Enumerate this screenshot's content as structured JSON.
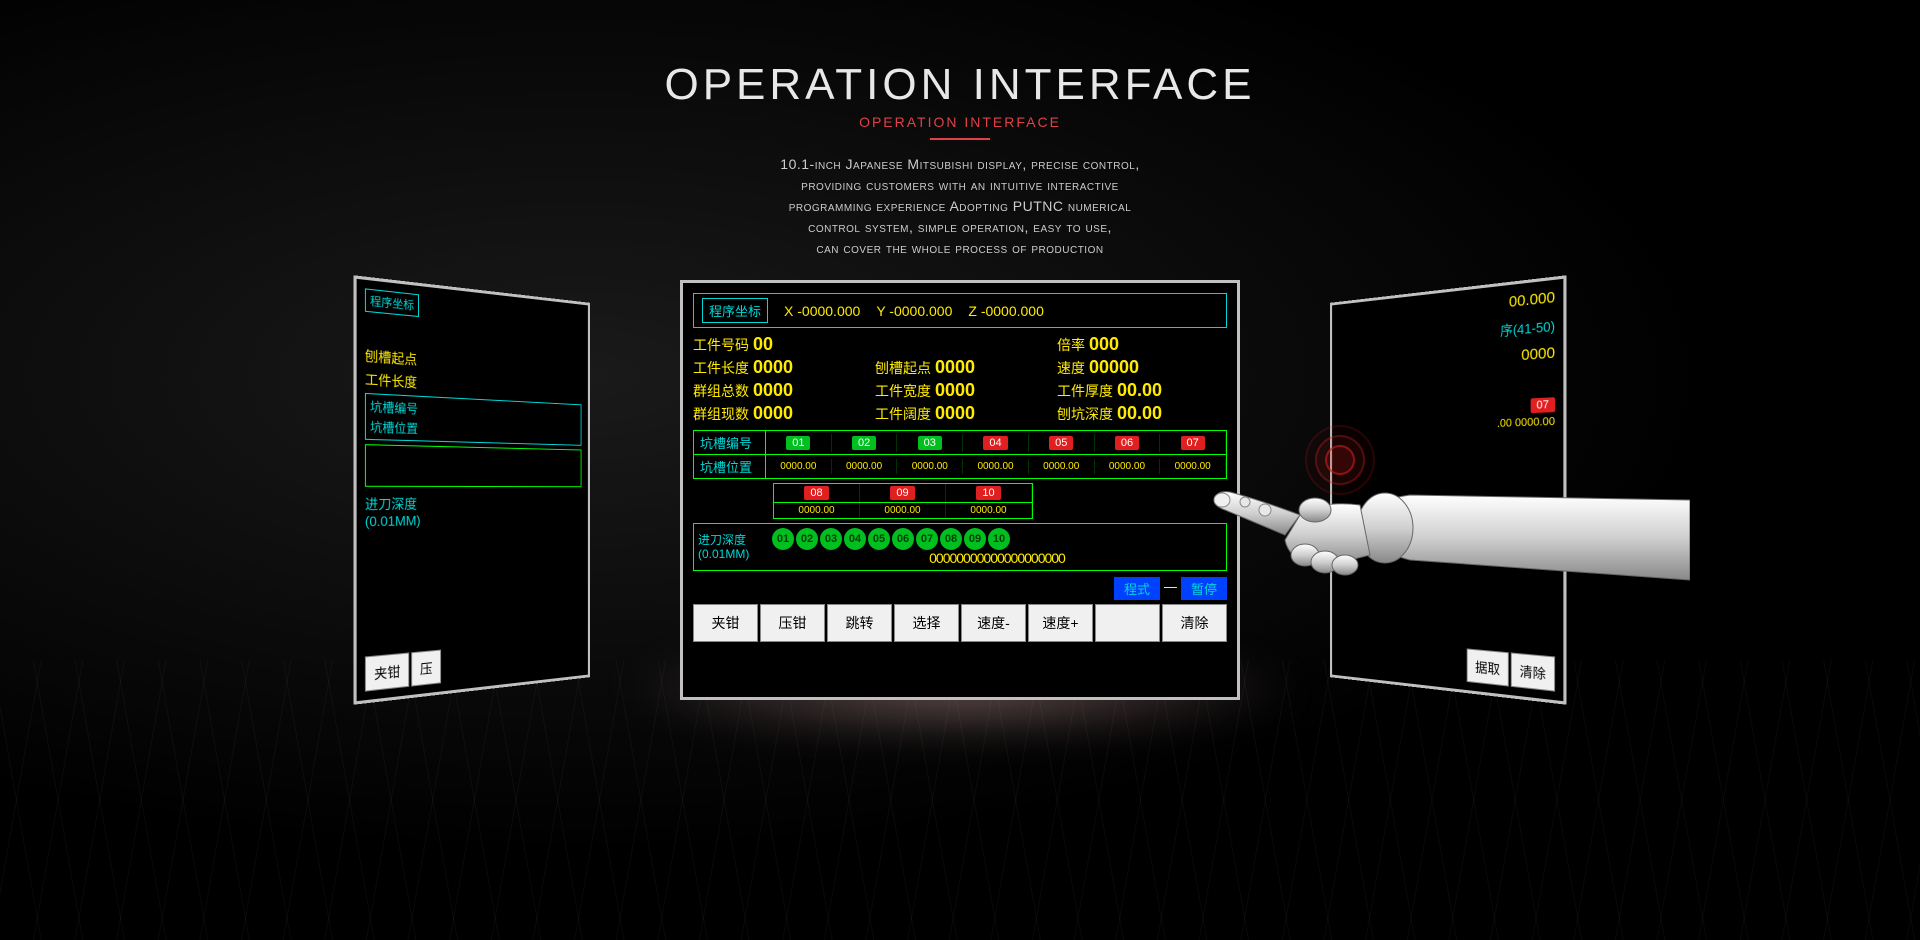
{
  "header": {
    "title_part1": "OPERATION",
    "title_part2": "INTERFACE",
    "subtitle": "OPERATION INTERFACE",
    "desc_line1": "10.1-inch Japanese Mitsubishi display, precise control,",
    "desc_line2": "providing customers with an intuitive interactive",
    "desc_line3": "programming experience Adopting PUTNC numerical",
    "desc_line4": "control system, simple operation, easy to use,",
    "desc_line5": "can cover the whole process of production"
  },
  "center": {
    "coord_label": "程序坐标",
    "x_label": "X",
    "x_val": "-0000.000",
    "y_label": "Y",
    "y_val": "-0000.000",
    "z_label": "Z",
    "z_val": "-0000.000",
    "part_no_label": "工件号码",
    "part_no": "00",
    "rate_label": "倍率",
    "rate": "000",
    "part_len_label": "工件长度",
    "part_len": "0000",
    "slot_start_label": "刨槽起点",
    "slot_start": "0000",
    "speed_label": "速度",
    "speed": "00000",
    "group_total_label": "群组总数",
    "group_total": "0000",
    "part_width_label": "工件宽度",
    "part_width": "0000",
    "part_thick_label": "工件厚度",
    "part_thick": "00.00",
    "group_cur_label": "群组现数",
    "group_cur": "0000",
    "part_span_label": "工件阔度",
    "part_span": "0000",
    "pit_depth_label": "刨坑深度",
    "pit_depth": "00.00",
    "slot_no_label": "坑槽编号",
    "slot_pos_label": "坑槽位置",
    "slots_top": [
      {
        "n": "01",
        "c": "g"
      },
      {
        "n": "02",
        "c": "g"
      },
      {
        "n": "03",
        "c": "g"
      },
      {
        "n": "04",
        "c": "r"
      },
      {
        "n": "05",
        "c": "r"
      },
      {
        "n": "06",
        "c": "r"
      },
      {
        "n": "07",
        "c": "r"
      }
    ],
    "slot_pos_val": "0000.00",
    "slots_bot": [
      {
        "n": "08",
        "c": "r"
      },
      {
        "n": "09",
        "c": "r"
      },
      {
        "n": "10",
        "c": "r"
      }
    ],
    "slot_pos_val2": "0000.00",
    "depth_label1": "进刀深度",
    "depth_label2": "(0.01MM)",
    "depth_nums": [
      "01",
      "02",
      "03",
      "04",
      "05",
      "06",
      "07",
      "08",
      "09",
      "10"
    ],
    "depth_val_str": "00000000000000000000",
    "status_prog": "程式",
    "status_pause": "暂停",
    "buttons": [
      "夹钳",
      "压钳",
      "跳转",
      "选择",
      "速度-",
      "速度+",
      "",
      "清除"
    ]
  },
  "left": {
    "coord_label": "程序坐标",
    "slot_start": "刨槽起点",
    "part_len": "工件长度",
    "slot_no": "坑槽编号",
    "slot_pos": "坑槽位置",
    "depth1": "进刀深度",
    "depth2": "(0.01MM)",
    "btn1": "夹钳",
    "btn2": "压"
  },
  "right": {
    "coord_val": "00.000",
    "prog_range": "序(41-50)",
    "val1": "0000",
    "slot07": "07",
    "pos_vals": ".00 0000.00",
    "btn1": "据取",
    "btn2": "清除"
  }
}
